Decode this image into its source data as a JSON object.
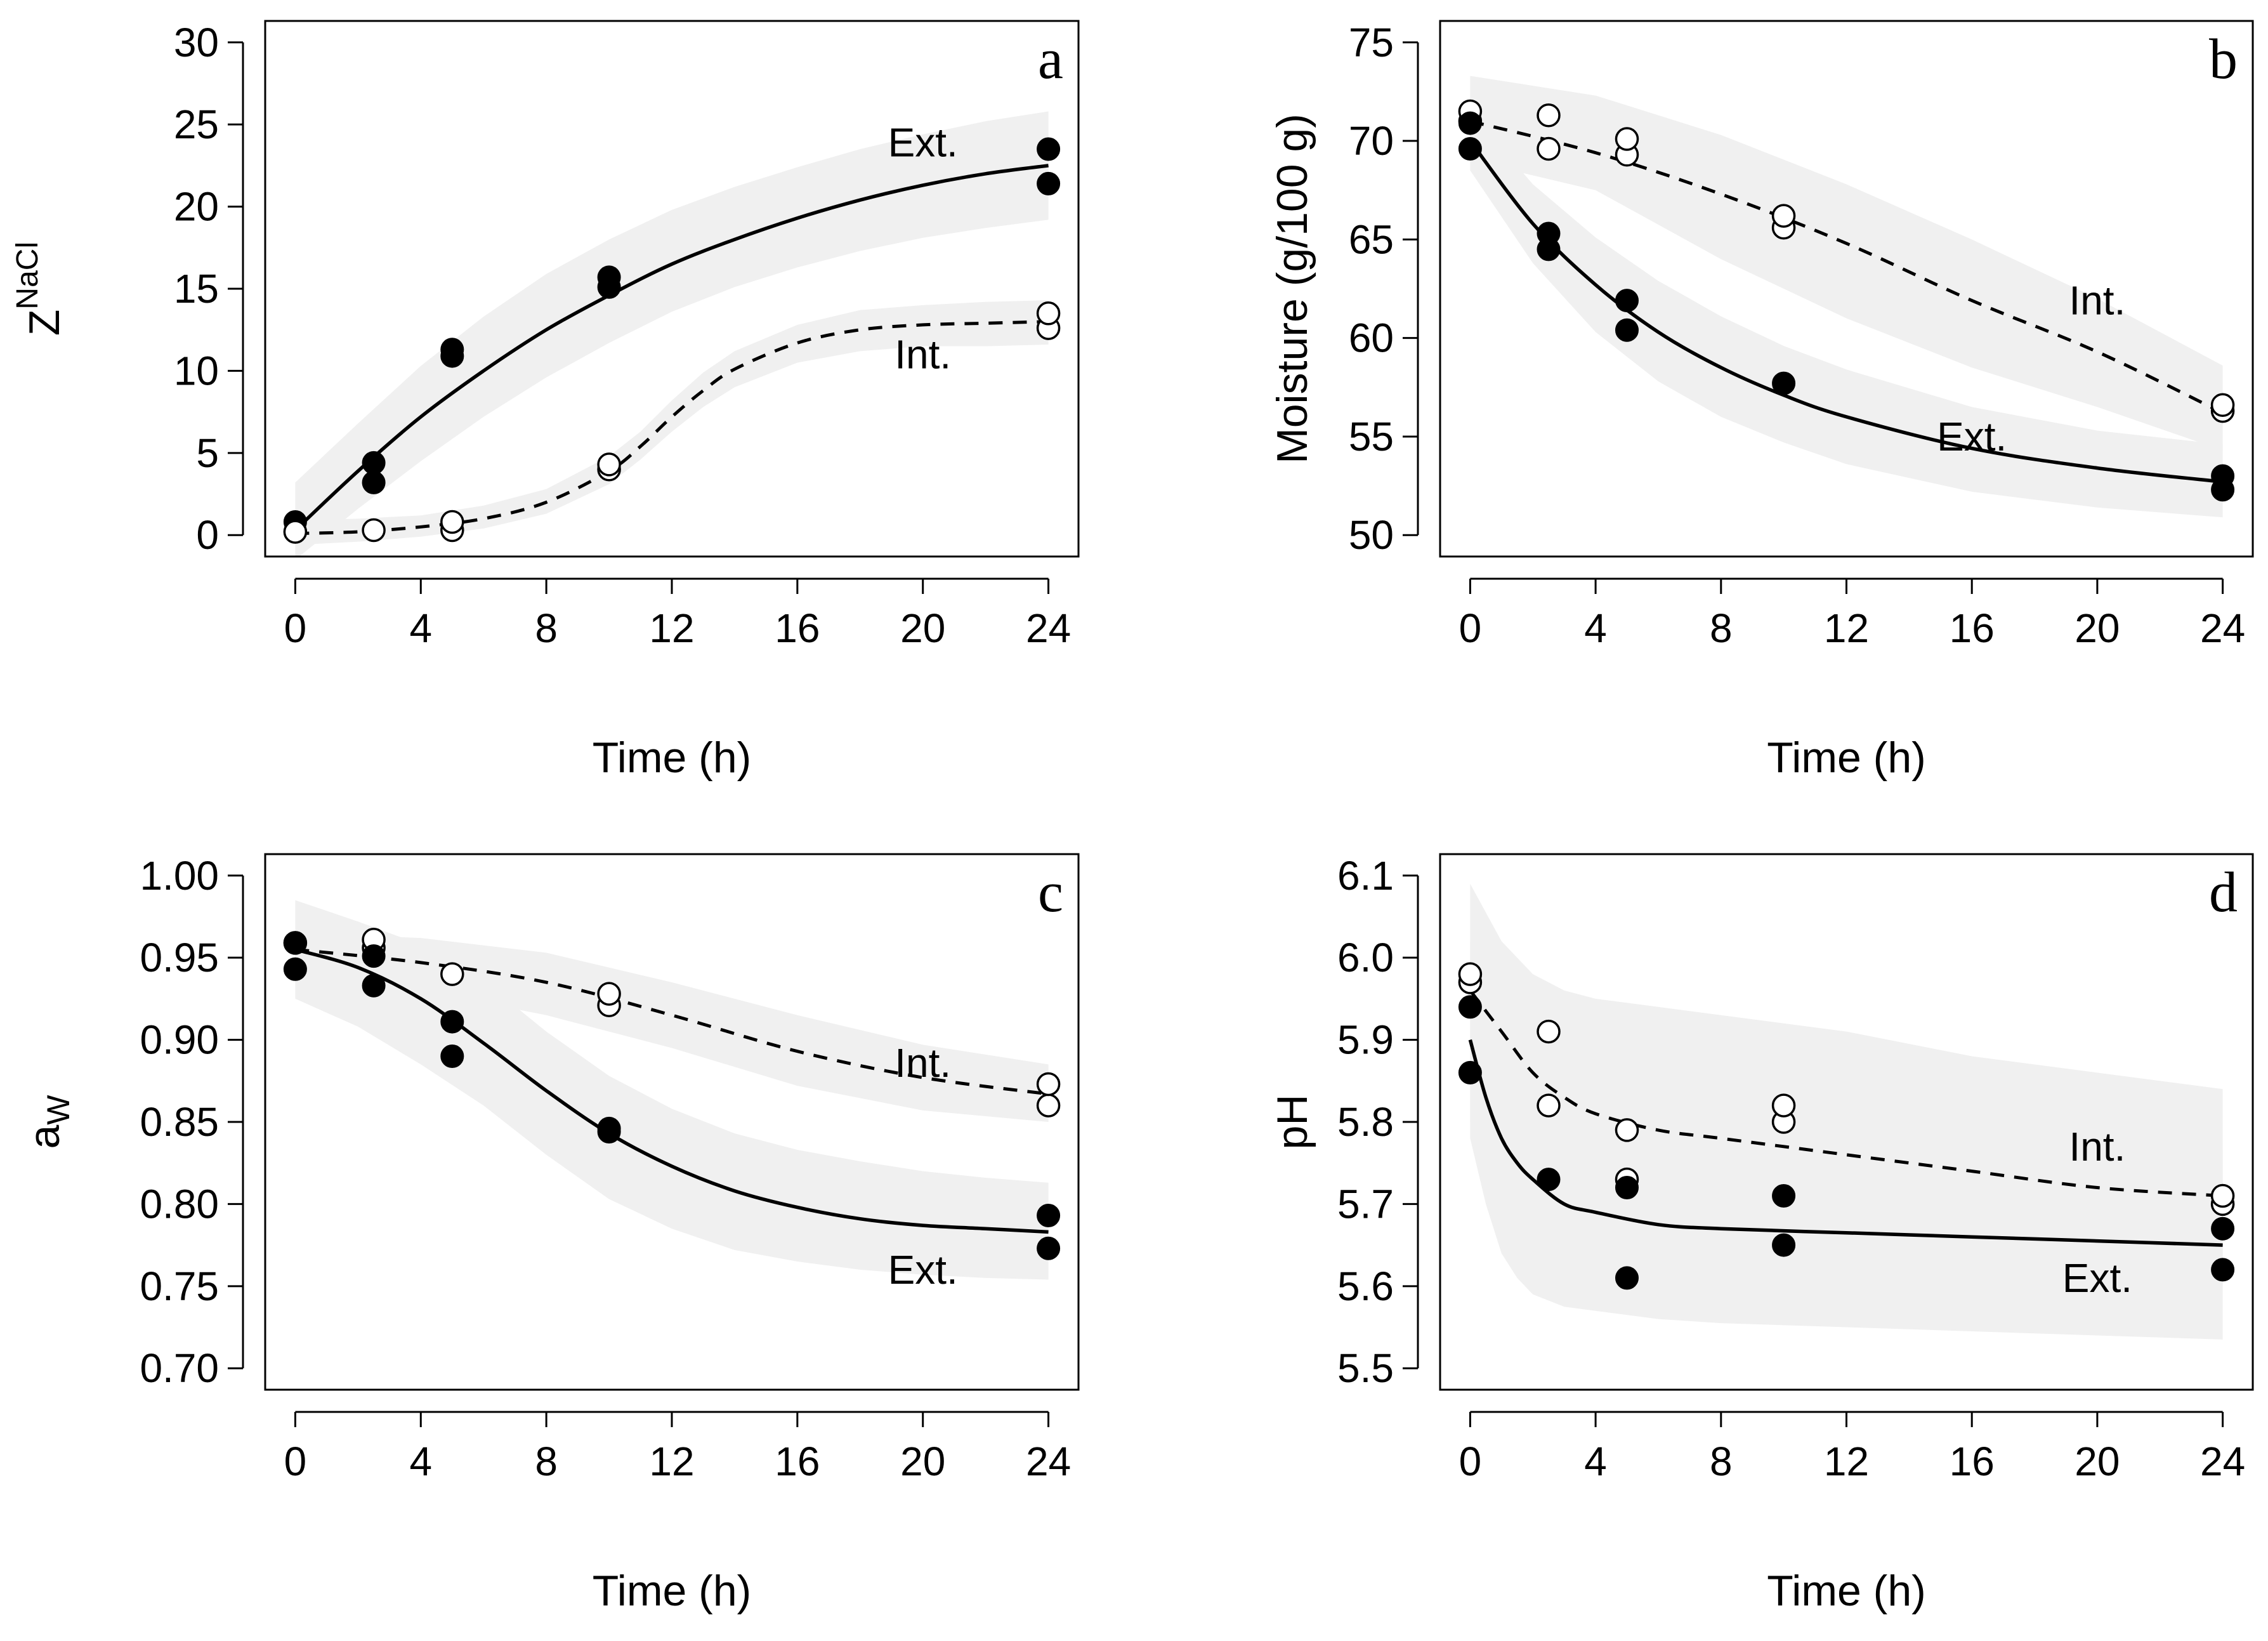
{
  "chart_data": [
    {
      "type": "scatter",
      "panel_letter": "a",
      "title": "",
      "xlabel": "Time (h)",
      "ylabel_main": "Z",
      "ylabel_sup": "NaCl",
      "xlim": [
        0,
        24
      ],
      "ylim": [
        0,
        30
      ],
      "xticks": [
        0,
        4,
        8,
        12,
        16,
        20,
        24
      ],
      "yticks": [
        0,
        5,
        10,
        15,
        20,
        25,
        30
      ],
      "ytick_labels": [
        "0",
        "5",
        "10",
        "15",
        "20",
        "25",
        "30"
      ],
      "grid": false,
      "series": [
        {
          "name": "Ext.",
          "marker": "filled",
          "line": "solid",
          "label_pos": [
            20,
            23.9
          ],
          "x": [
            0,
            0,
            2.5,
            2.5,
            5,
            5,
            10,
            10,
            24,
            24
          ],
          "y": [
            0.2,
            0.8,
            3.2,
            4.4,
            10.9,
            11.3,
            15.1,
            15.7,
            21.4,
            23.5
          ],
          "fit_x": [
            0,
            2,
            4,
            6,
            8,
            10,
            12,
            14,
            16,
            18,
            20,
            22,
            24
          ],
          "fit_y": [
            0.3,
            3.9,
            7.2,
            10.0,
            12.5,
            14.6,
            16.5,
            18.0,
            19.3,
            20.4,
            21.3,
            22.0,
            22.5
          ],
          "band_lower": [
            -1.5,
            1.6,
            4.5,
            7.2,
            9.6,
            11.7,
            13.6,
            15.1,
            16.3,
            17.3,
            18.1,
            18.7,
            19.2
          ],
          "band_upper": [
            3.2,
            6.8,
            10.3,
            13.3,
            15.9,
            18.0,
            19.8,
            21.2,
            22.4,
            23.5,
            24.4,
            25.2,
            25.8
          ]
        },
        {
          "name": "Int.",
          "marker": "open",
          "line": "dashed",
          "label_pos": [
            20,
            11.0
          ],
          "x": [
            0,
            2.5,
            5,
            5,
            10,
            10,
            24,
            24
          ],
          "y": [
            0.2,
            0.3,
            0.3,
            0.8,
            4.0,
            4.3,
            12.6,
            13.5
          ],
          "fit_x": [
            0,
            2,
            4,
            6,
            8,
            10,
            11,
            12,
            13,
            14,
            16,
            18,
            20,
            22,
            24
          ],
          "fit_y": [
            0.1,
            0.2,
            0.5,
            1.0,
            2.0,
            3.9,
            5.4,
            7.2,
            8.8,
            10.1,
            11.7,
            12.5,
            12.8,
            12.9,
            13.0
          ],
          "band_lower": [
            -0.6,
            -0.4,
            -0.1,
            0.4,
            1.3,
            3.1,
            4.6,
            6.3,
            7.8,
            9.0,
            10.5,
            11.2,
            11.5,
            11.5,
            11.6
          ],
          "band_upper": [
            0.9,
            1.0,
            1.2,
            1.8,
            2.8,
            4.8,
            6.3,
            8.2,
            9.9,
            11.2,
            12.8,
            13.7,
            14.0,
            14.2,
            14.3
          ]
        }
      ]
    },
    {
      "type": "scatter",
      "panel_letter": "b",
      "title": "",
      "xlabel": "Time (h)",
      "ylabel_main": "Moisture (g/100 g)",
      "ylabel_sup": "",
      "xlim": [
        0,
        24
      ],
      "ylim": [
        50,
        75
      ],
      "xticks": [
        0,
        4,
        8,
        12,
        16,
        20,
        24
      ],
      "yticks": [
        50,
        55,
        60,
        65,
        70,
        75
      ],
      "ytick_labels": [
        "50",
        "55",
        "60",
        "65",
        "70",
        "75"
      ],
      "grid": false,
      "series": [
        {
          "name": "Int.",
          "marker": "open",
          "line": "dashed",
          "label_pos": [
            20,
            61.9
          ],
          "x": [
            0,
            0,
            2.5,
            2.5,
            5,
            5,
            10,
            10,
            24,
            24
          ],
          "y": [
            71.0,
            71.5,
            69.6,
            71.3,
            69.3,
            70.1,
            65.6,
            66.2,
            56.3,
            56.6
          ],
          "fit_x": [
            0,
            4,
            8,
            12,
            16,
            20,
            24
          ],
          "fit_y": [
            71.0,
            69.4,
            67.3,
            64.8,
            61.9,
            59.3,
            56.2
          ],
          "band_lower": [
            69.0,
            67.5,
            64.0,
            61.0,
            58.5,
            56.5,
            54.3
          ],
          "band_upper": [
            73.3,
            72.3,
            70.3,
            67.8,
            65.0,
            62.0,
            58.6
          ]
        },
        {
          "name": "Ext.",
          "marker": "filled",
          "line": "solid",
          "label_pos": [
            16,
            55.0
          ],
          "x": [
            0,
            0,
            2.5,
            2.5,
            5,
            5,
            10,
            24,
            24
          ],
          "y": [
            69.6,
            70.9,
            64.5,
            65.3,
            60.4,
            61.9,
            57.7,
            52.3,
            53.0
          ],
          "fit_x": [
            0,
            2,
            4,
            6,
            8,
            10,
            12,
            16,
            20,
            24
          ],
          "fit_y": [
            70.0,
            65.8,
            62.7,
            60.3,
            58.5,
            57.1,
            56.0,
            54.4,
            53.4,
            52.7
          ],
          "band_lower": [
            68.5,
            63.8,
            60.3,
            57.8,
            56.0,
            54.7,
            53.6,
            52.2,
            51.4,
            50.9
          ],
          "band_upper": [
            71.5,
            67.8,
            65.1,
            62.9,
            61.1,
            59.6,
            58.4,
            56.5,
            55.3,
            54.6
          ]
        }
      ]
    },
    {
      "type": "scatter",
      "panel_letter": "c",
      "title": "",
      "xlabel": "Time (h)",
      "ylabel_main": "a",
      "ylabel_sub": "W",
      "ylabel_sup": "",
      "xlim": [
        0,
        24
      ],
      "ylim": [
        0.7,
        1.0
      ],
      "xticks": [
        0,
        4,
        8,
        12,
        16,
        20,
        24
      ],
      "yticks": [
        0.7,
        0.75,
        0.8,
        0.85,
        0.9,
        0.95,
        1.0
      ],
      "ytick_labels": [
        "0.70",
        "0.75",
        "0.80",
        "0.85",
        "0.90",
        "0.95",
        "1.00"
      ],
      "grid": false,
      "series": [
        {
          "name": "Int.",
          "marker": "open",
          "line": "dashed",
          "label_pos": [
            20,
            0.886
          ],
          "x": [
            0,
            2.5,
            2.5,
            5,
            10,
            10,
            24,
            24
          ],
          "y": [
            0.959,
            0.956,
            0.961,
            0.94,
            0.921,
            0.928,
            0.86,
            0.873
          ],
          "fit_x": [
            0,
            4,
            8,
            12,
            16,
            20,
            24
          ],
          "fit_y": [
            0.955,
            0.947,
            0.935,
            0.915,
            0.893,
            0.877,
            0.867
          ],
          "band_lower": [
            0.945,
            0.93,
            0.915,
            0.895,
            0.872,
            0.857,
            0.85
          ],
          "band_upper": [
            0.965,
            0.962,
            0.953,
            0.935,
            0.915,
            0.897,
            0.885
          ]
        },
        {
          "name": "Ext.",
          "marker": "filled",
          "line": "solid",
          "label_pos": [
            20,
            0.76
          ],
          "x": [
            0,
            0,
            2.5,
            2.5,
            5,
            5,
            10,
            10,
            24,
            24
          ],
          "y": [
            0.943,
            0.959,
            0.933,
            0.951,
            0.89,
            0.911,
            0.844,
            0.846,
            0.773,
            0.793
          ],
          "fit_x": [
            0,
            2,
            4,
            6,
            8,
            10,
            12,
            14,
            16,
            18,
            20,
            22,
            24
          ],
          "fit_y": [
            0.955,
            0.944,
            0.925,
            0.898,
            0.869,
            0.843,
            0.823,
            0.808,
            0.798,
            0.791,
            0.787,
            0.785,
            0.783
          ],
          "band_lower": [
            0.925,
            0.908,
            0.885,
            0.86,
            0.83,
            0.803,
            0.785,
            0.772,
            0.765,
            0.76,
            0.757,
            0.755,
            0.754
          ],
          "band_upper": [
            0.985,
            0.972,
            0.958,
            0.936,
            0.905,
            0.878,
            0.858,
            0.843,
            0.833,
            0.826,
            0.82,
            0.816,
            0.813
          ]
        }
      ]
    },
    {
      "type": "scatter",
      "panel_letter": "d",
      "title": "",
      "xlabel": "Time (h)",
      "ylabel_main": "pH",
      "ylabel_sup": "",
      "xlim": [
        0,
        24
      ],
      "ylim": [
        5.5,
        6.1
      ],
      "xticks": [
        0,
        4,
        8,
        12,
        16,
        20,
        24
      ],
      "yticks": [
        5.5,
        5.6,
        5.7,
        5.8,
        5.9,
        6.0,
        6.1
      ],
      "ytick_labels": [
        "5.5",
        "5.6",
        "5.7",
        "5.8",
        "5.9",
        "6.0",
        "6.1"
      ],
      "grid": false,
      "series": [
        {
          "name": "Int.",
          "marker": "open",
          "line": "dashed",
          "label_pos": [
            20,
            5.77
          ],
          "x": [
            0,
            0,
            2.5,
            2.5,
            5,
            5,
            10,
            10,
            24,
            24
          ],
          "y": [
            5.97,
            5.98,
            5.82,
            5.91,
            5.73,
            5.79,
            5.8,
            5.82,
            5.7,
            5.71
          ],
          "fit_x": [
            0,
            1,
            2,
            3,
            4,
            6,
            8,
            12,
            16,
            20,
            24
          ],
          "fit_y": [
            5.96,
            5.91,
            5.86,
            5.83,
            5.81,
            5.79,
            5.78,
            5.76,
            5.74,
            5.72,
            5.71
          ],
          "band_lower": [
            5.8,
            5.75,
            5.72,
            5.7,
            5.68,
            5.66,
            5.65,
            5.63,
            5.62,
            5.61,
            5.6
          ],
          "band_upper": [
            6.09,
            6.02,
            5.98,
            5.96,
            5.95,
            5.94,
            5.93,
            5.91,
            5.88,
            5.86,
            5.84
          ]
        },
        {
          "name": "Ext.",
          "marker": "filled",
          "line": "solid",
          "label_pos": [
            20,
            5.61
          ],
          "x": [
            0,
            0,
            2.5,
            5,
            5,
            10,
            10,
            24,
            24
          ],
          "y": [
            5.86,
            5.94,
            5.73,
            5.61,
            5.72,
            5.65,
            5.71,
            5.62,
            5.67
          ],
          "fit_x": [
            0,
            0.5,
            1,
            1.5,
            2,
            3,
            4,
            6,
            8,
            12,
            16,
            20,
            24
          ],
          "fit_y": [
            5.9,
            5.83,
            5.78,
            5.75,
            5.73,
            5.7,
            5.69,
            5.675,
            5.67,
            5.665,
            5.66,
            5.655,
            5.65
          ],
          "band_lower": [
            5.78,
            5.7,
            5.64,
            5.61,
            5.59,
            5.575,
            5.57,
            5.56,
            5.555,
            5.55,
            5.545,
            5.54,
            5.535
          ],
          "band_upper": [
            6.02,
            5.96,
            5.92,
            5.89,
            5.87,
            5.85,
            5.84,
            5.82,
            5.81,
            5.79,
            5.78,
            5.77,
            5.765
          ]
        }
      ]
    }
  ]
}
